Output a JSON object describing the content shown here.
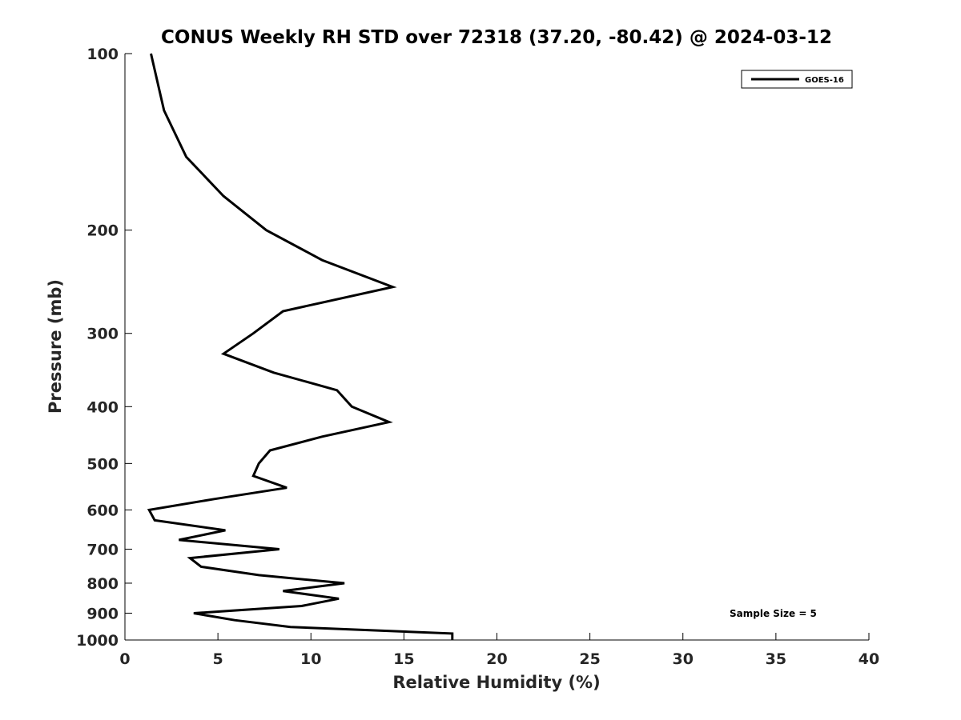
{
  "chart_data": {
    "type": "line",
    "title": "CONUS Weekly RH STD over 72318 (37.20, -80.42) @ 2024-03-12",
    "xlabel": "Relative Humidity (%)",
    "ylabel": "Pressure (mb)",
    "xlim": [
      0,
      40
    ],
    "ylim": [
      100,
      1000
    ],
    "yscale": "log",
    "y_reversed": true,
    "x_ticks": [
      0,
      5,
      10,
      15,
      20,
      25,
      30,
      35,
      40
    ],
    "y_ticks": [
      100,
      200,
      300,
      400,
      500,
      600,
      700,
      800,
      900,
      1000
    ],
    "grid": false,
    "legend_position": "top-right",
    "series": [
      {
        "name": "GOES-16",
        "color": "#000000",
        "points": [
          {
            "rh": 1.4,
            "p": 100
          },
          {
            "rh": 2.1,
            "p": 125
          },
          {
            "rh": 3.3,
            "p": 150
          },
          {
            "rh": 5.3,
            "p": 175
          },
          {
            "rh": 7.6,
            "p": 200
          },
          {
            "rh": 10.6,
            "p": 225
          },
          {
            "rh": 14.4,
            "p": 250
          },
          {
            "rh": 8.5,
            "p": 275
          },
          {
            "rh": 6.9,
            "p": 300
          },
          {
            "rh": 5.3,
            "p": 325
          },
          {
            "rh": 8.0,
            "p": 350
          },
          {
            "rh": 11.4,
            "p": 375
          },
          {
            "rh": 12.2,
            "p": 400
          },
          {
            "rh": 14.2,
            "p": 425
          },
          {
            "rh": 10.6,
            "p": 450
          },
          {
            "rh": 7.8,
            "p": 475
          },
          {
            "rh": 7.2,
            "p": 500
          },
          {
            "rh": 6.9,
            "p": 525
          },
          {
            "rh": 8.7,
            "p": 550
          },
          {
            "rh": 4.8,
            "p": 575
          },
          {
            "rh": 1.3,
            "p": 600
          },
          {
            "rh": 1.6,
            "p": 625
          },
          {
            "rh": 5.4,
            "p": 650
          },
          {
            "rh": 2.9,
            "p": 675
          },
          {
            "rh": 8.3,
            "p": 700
          },
          {
            "rh": 3.5,
            "p": 725
          },
          {
            "rh": 4.1,
            "p": 750
          },
          {
            "rh": 7.2,
            "p": 775
          },
          {
            "rh": 11.8,
            "p": 800
          },
          {
            "rh": 8.5,
            "p": 825
          },
          {
            "rh": 11.5,
            "p": 850
          },
          {
            "rh": 9.5,
            "p": 875
          },
          {
            "rh": 3.7,
            "p": 900
          },
          {
            "rh": 5.9,
            "p": 925
          },
          {
            "rh": 8.9,
            "p": 950
          },
          {
            "rh": 17.6,
            "p": 975
          },
          {
            "rh": 17.6,
            "p": 1000
          }
        ]
      }
    ],
    "annotations": [
      "Sample Size = 5"
    ]
  }
}
